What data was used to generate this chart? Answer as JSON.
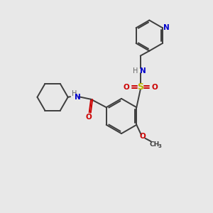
{
  "background_color": "#e8e8e8",
  "bond_color": "#3d3d3d",
  "atom_colors": {
    "N": "#0000cc",
    "O": "#cc0000",
    "S": "#b8b800",
    "C": "#3d3d3d"
  },
  "figsize": [
    3.0,
    3.0
  ],
  "dpi": 100,
  "xlim": [
    0,
    10
  ],
  "ylim": [
    0,
    10
  ],
  "lw": 1.4,
  "fs_heavy": 7.5,
  "fs_label": 6.5
}
